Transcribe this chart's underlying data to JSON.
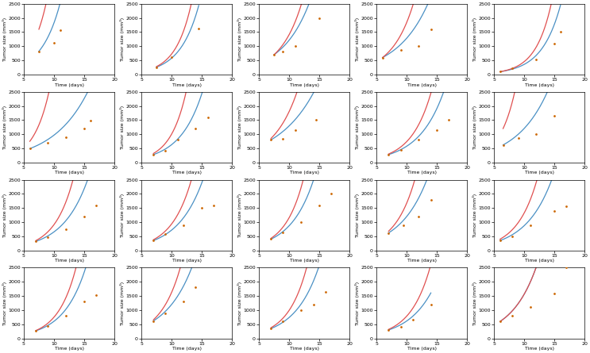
{
  "nrows": 4,
  "ncols": 5,
  "xlim": [
    5,
    20
  ],
  "ylim": [
    0,
    2500
  ],
  "xticks": [
    5,
    10,
    15,
    20
  ],
  "yticks": [
    0,
    500,
    1000,
    1500,
    2000,
    2500
  ],
  "xlabel": "Time (days)",
  "ylabel": "Tumor size (mm³)",
  "blue_color": "#4a90c4",
  "red_color": "#e05050",
  "dot_color": "#cc6600",
  "subplots": [
    {
      "data_x": [
        7.5,
        10,
        11
      ],
      "data_y": [
        820,
        1120,
        1560
      ],
      "blue_t0": 7.5,
      "blue_y0": 820,
      "blue_r": 0.32,
      "red_t0": 7.5,
      "red_y0": 1600,
      "red_r": 0.38
    },
    {
      "data_x": [
        7.5,
        10,
        14.5
      ],
      "data_y": [
        260,
        620,
        1620
      ],
      "blue_t0": 7.5,
      "blue_y0": 260,
      "blue_r": 0.32,
      "red_t0": 7.5,
      "red_y0": 280,
      "red_r": 0.38
    },
    {
      "data_x": [
        7.5,
        9,
        11,
        15
      ],
      "data_y": [
        700,
        800,
        1000,
        2000
      ],
      "blue_t0": 7.5,
      "blue_y0": 700,
      "blue_r": 0.22,
      "red_t0": 7.5,
      "red_y0": 700,
      "red_r": 0.28
    },
    {
      "data_x": [
        6,
        9,
        12,
        14
      ],
      "data_y": [
        600,
        870,
        1000,
        1600
      ],
      "blue_t0": 6,
      "blue_y0": 600,
      "blue_r": 0.19,
      "red_t0": 6,
      "red_y0": 600,
      "red_r": 0.28
    },
    {
      "data_x": [
        6,
        8,
        12,
        15,
        16
      ],
      "data_y": [
        100,
        220,
        520,
        1100,
        1500
      ],
      "blue_t0": 6,
      "blue_y0": 100,
      "blue_r": 0.32,
      "red_t0": 6,
      "red_y0": 100,
      "red_r": 0.38
    },
    {
      "data_x": [
        6,
        9,
        12,
        15,
        16
      ],
      "data_y": [
        490,
        700,
        900,
        1200,
        1480
      ],
      "blue_t0": 6,
      "blue_y0": 490,
      "blue_r": 0.17,
      "red_t0": 6,
      "red_y0": 750,
      "red_r": 0.38
    },
    {
      "data_x": [
        7,
        9,
        11,
        14,
        16
      ],
      "data_y": [
        280,
        430,
        800,
        1200,
        1600
      ],
      "blue_t0": 7,
      "blue_y0": 280,
      "blue_r": 0.27,
      "red_t0": 7,
      "red_y0": 320,
      "red_r": 0.38
    },
    {
      "data_x": [
        7,
        9,
        11,
        14.5
      ],
      "data_y": [
        800,
        840,
        1150,
        1520
      ],
      "blue_t0": 7,
      "blue_y0": 800,
      "blue_r": 0.16,
      "red_t0": 7,
      "red_y0": 850,
      "red_r": 0.25
    },
    {
      "data_x": [
        7,
        9,
        12,
        15,
        17
      ],
      "data_y": [
        280,
        450,
        800,
        1150,
        1520
      ],
      "blue_t0": 7,
      "blue_y0": 280,
      "blue_r": 0.24,
      "red_t0": 7,
      "red_y0": 300,
      "red_r": 0.3
    },
    {
      "data_x": [
        6.5,
        9,
        12,
        15
      ],
      "data_y": [
        620,
        860,
        1000,
        1650
      ],
      "blue_t0": 6.5,
      "blue_y0": 620,
      "blue_r": 0.19,
      "red_t0": 6.5,
      "red_y0": 1200,
      "red_r": 0.38
    },
    {
      "data_x": [
        7,
        9,
        12,
        15,
        17
      ],
      "data_y": [
        320,
        480,
        750,
        1200,
        1580
      ],
      "blue_t0": 7,
      "blue_y0": 320,
      "blue_r": 0.24,
      "red_t0": 7,
      "red_y0": 350,
      "red_r": 0.32
    },
    {
      "data_x": [
        7,
        9,
        12,
        15,
        17
      ],
      "data_y": [
        350,
        580,
        900,
        1500,
        1600
      ],
      "blue_t0": 7,
      "blue_y0": 350,
      "blue_r": 0.24,
      "red_t0": 7,
      "red_y0": 380,
      "red_r": 0.3
    },
    {
      "data_x": [
        7,
        9,
        12,
        15,
        17
      ],
      "data_y": [
        400,
        650,
        1000,
        1600,
        2000
      ],
      "blue_t0": 7,
      "blue_y0": 400,
      "blue_r": 0.26,
      "red_t0": 7,
      "red_y0": 430,
      "red_r": 0.33
    },
    {
      "data_x": [
        7,
        9.5,
        12,
        14
      ],
      "data_y": [
        620,
        900,
        1200,
        1800
      ],
      "blue_t0": 7,
      "blue_y0": 620,
      "blue_r": 0.22,
      "red_t0": 7,
      "red_y0": 680,
      "red_r": 0.3
    },
    {
      "data_x": [
        6,
        8,
        11,
        15,
        17
      ],
      "data_y": [
        350,
        500,
        900,
        1400,
        1560
      ],
      "blue_t0": 6,
      "blue_y0": 350,
      "blue_r": 0.23,
      "red_t0": 6,
      "red_y0": 400,
      "red_r": 0.3
    },
    {
      "data_x": [
        7,
        9,
        12,
        15,
        17
      ],
      "data_y": [
        270,
        450,
        800,
        1300,
        1540
      ],
      "blue_t0": 7,
      "blue_y0": 270,
      "blue_r": 0.27,
      "red_t0": 7,
      "red_y0": 280,
      "red_r": 0.33
    },
    {
      "data_x": [
        7,
        9,
        12,
        14
      ],
      "data_y": [
        620,
        900,
        1300,
        1800
      ],
      "blue_t0": 7,
      "blue_y0": 620,
      "blue_r": 0.22,
      "red_t0": 7,
      "red_y0": 660,
      "red_r": 0.3
    },
    {
      "data_x": [
        7,
        9,
        12,
        14,
        16
      ],
      "data_y": [
        350,
        600,
        1000,
        1200,
        1650
      ],
      "blue_t0": 7,
      "blue_y0": 350,
      "blue_r": 0.25,
      "red_t0": 7,
      "red_y0": 380,
      "red_r": 0.32
    },
    {
      "data_x": [
        7,
        9,
        11,
        14
      ],
      "data_y": [
        300,
        420,
        650,
        1200
      ],
      "blue_t0": 7,
      "blue_y0": 300,
      "blue_r": 0.24,
      "red_t0": 7,
      "red_y0": 320,
      "red_r": 0.3
    },
    {
      "data_x": [
        6,
        8,
        11,
        15,
        17
      ],
      "data_y": [
        600,
        800,
        1100,
        1600,
        2500
      ],
      "blue_t0": 6,
      "blue_y0": 600,
      "blue_r": 0.24,
      "red_t0": 6,
      "red_y0": 600,
      "red_r": 0.24
    }
  ]
}
